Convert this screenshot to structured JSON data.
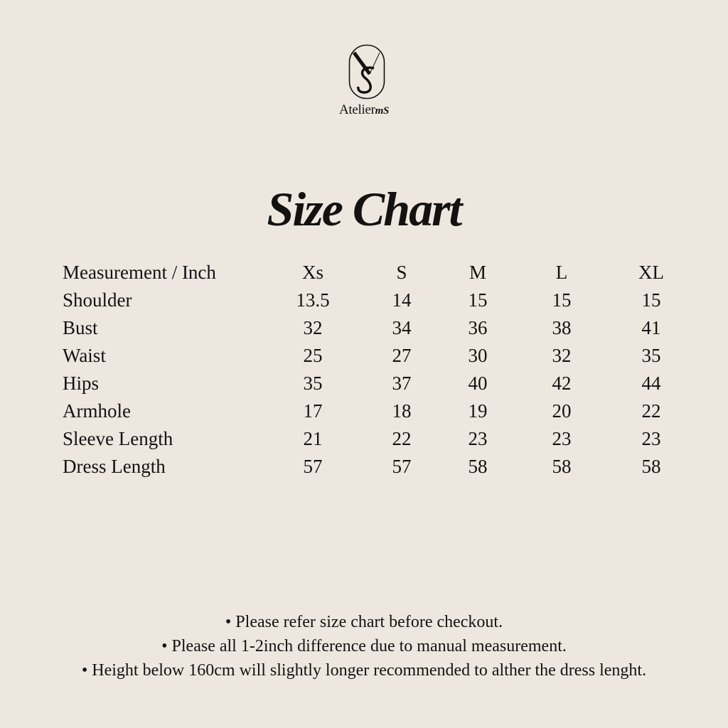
{
  "brand": {
    "name": "Atelier",
    "suffix": "mS",
    "logo_letters": "VS"
  },
  "title": "Size Chart",
  "table": {
    "header": [
      "Measurement / Inch",
      "Xs",
      "S",
      "M",
      "L",
      "XL"
    ],
    "rows": [
      [
        "Shoulder",
        "13.5",
        "14",
        "15",
        "15",
        "15"
      ],
      [
        "Bust",
        "32",
        "34",
        "36",
        "38",
        "41"
      ],
      [
        "Waist",
        "25",
        "27",
        "30",
        "32",
        "35"
      ],
      [
        "Hips",
        "35",
        "37",
        "40",
        "42",
        "44"
      ],
      [
        "Armhole",
        "17",
        "18",
        "19",
        "20",
        "22"
      ],
      [
        "Sleeve Length",
        "21",
        "22",
        "23",
        "23",
        "23"
      ],
      [
        "Dress Length",
        "57",
        "57",
        "58",
        "58",
        "58"
      ]
    ]
  },
  "notes": [
    "• Please refer size chart before checkout.",
    "• Please all 1-2inch difference due to manual measurement.",
    "• Height below 160cm will slightly longer recommended to alther the dress lenght."
  ],
  "colors": {
    "background": "#ede7df",
    "text": "#141210"
  }
}
